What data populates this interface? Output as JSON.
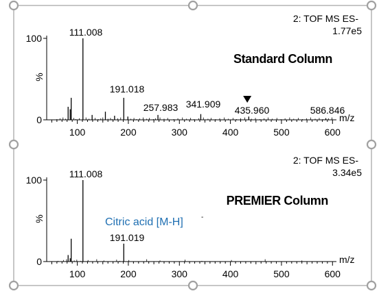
{
  "chart_data": [
    {
      "type": "bar",
      "instrument": [
        "2: TOF MS ES-",
        "1.77e5"
      ],
      "title": "Standard Column",
      "ylabel": "%",
      "xlabel": "m/z",
      "xlim": [
        40,
        605
      ],
      "ylim": [
        0,
        100
      ],
      "x_ticks": [
        100,
        200,
        300,
        400,
        500,
        600
      ],
      "y_ticks": [
        0,
        100
      ],
      "peaks": [
        {
          "x": 82,
          "y": 16
        },
        {
          "x": 86,
          "y": 13
        },
        {
          "x": 88,
          "y": 27
        },
        {
          "x": 111.008,
          "y": 100
        },
        {
          "x": 129,
          "y": 6
        },
        {
          "x": 155,
          "y": 10
        },
        {
          "x": 173,
          "y": 5
        },
        {
          "x": 191.018,
          "y": 27
        },
        {
          "x": 199,
          "y": 4
        },
        {
          "x": 257.983,
          "y": 6
        },
        {
          "x": 341.909,
          "y": 7
        },
        {
          "x": 435.96,
          "y": 4
        },
        {
          "x": 586.846,
          "y": 2
        }
      ],
      "peak_labels": [
        "111.008",
        "191.018",
        "257.983",
        "341.909",
        "435.960",
        "586.846"
      ],
      "marker": {
        "x": 433,
        "shape": "filled-triangle-down"
      }
    },
    {
      "type": "bar",
      "instrument": [
        "2: TOF MS ES-",
        "3.34e5"
      ],
      "title": "PREMIER Column",
      "ylabel": "%",
      "xlabel": "m/z",
      "xlim": [
        40,
        605
      ],
      "ylim": [
        0,
        100
      ],
      "x_ticks": [
        100,
        200,
        300,
        400,
        500,
        600
      ],
      "y_ticks": [
        0,
        100
      ],
      "peaks": [
        {
          "x": 82,
          "y": 8
        },
        {
          "x": 86,
          "y": 4
        },
        {
          "x": 88,
          "y": 28
        },
        {
          "x": 111.008,
          "y": 100
        },
        {
          "x": 191.019,
          "y": 22
        }
      ],
      "peak_labels": [
        "111.008",
        "191.019"
      ],
      "annotation": {
        "text": "Citric acid [M-H]",
        "superscript": "-",
        "color": "#1f6fb2"
      }
    }
  ],
  "colors": {
    "frame": "#a0a0a0",
    "handle": "#a0a0a0",
    "annotation": "#1f6fb2"
  }
}
